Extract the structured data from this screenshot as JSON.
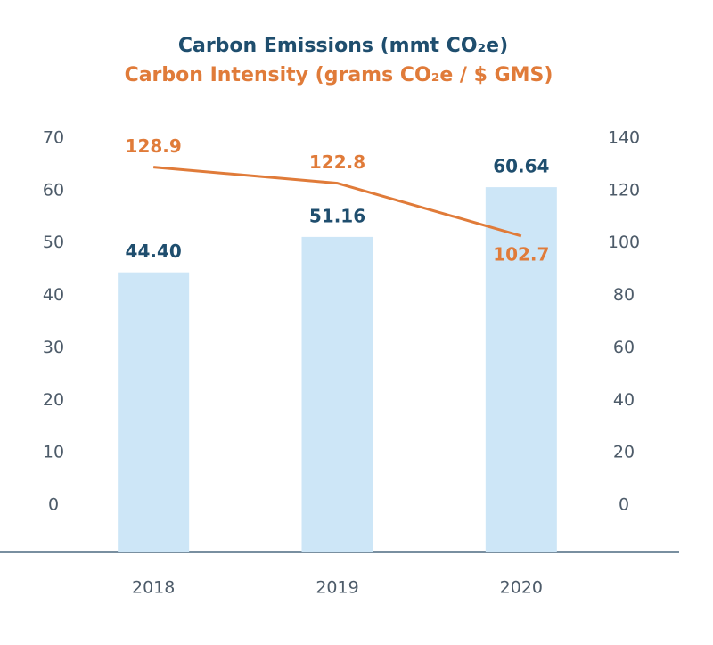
{
  "chart_data": {
    "type": "bar",
    "categories": [
      "2018",
      "2019",
      "2020"
    ],
    "series": [
      {
        "name": "Carbon Emissions (mmt CO₂e)",
        "type": "bar",
        "color": "#cde6f7",
        "label_color": "#1f4e6e",
        "values": [
          44.4,
          51.16,
          60.64
        ],
        "value_labels": [
          "44.40",
          "51.16",
          "60.64"
        ]
      },
      {
        "name": "Carbon Intensity (grams CO₂e / $ GMS)",
        "type": "line",
        "axis": "y2",
        "color": "#e07b39",
        "values": [
          128.9,
          122.8,
          102.7
        ]
      }
    ],
    "ylim": [
      -9,
      70
    ],
    "yticks": [
      0,
      10,
      20,
      30,
      40,
      50,
      60,
      70
    ],
    "y2lim": [
      -18,
      140
    ],
    "y2ticks": [
      0,
      20,
      40,
      60,
      80,
      100,
      120,
      140
    ],
    "grid": false
  }
}
